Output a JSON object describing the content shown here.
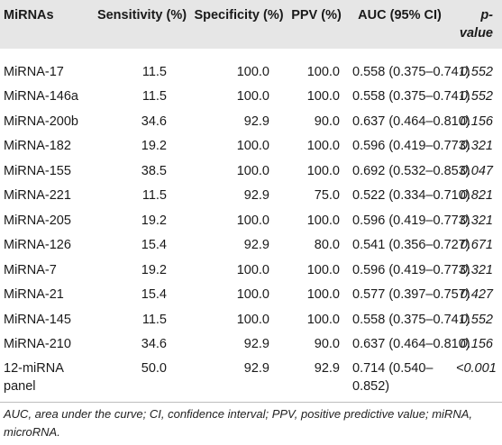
{
  "table": {
    "headers": {
      "name": "MiRNAs",
      "sensitivity": "Sensitivity (%)",
      "specificity": "Specificity (%)",
      "ppv": "PPV (%)",
      "auc": "AUC (95% CI)",
      "p": "p-value"
    },
    "rows": [
      {
        "name": "MiRNA-17",
        "sensitivity": "11.5",
        "specificity": "100.0",
        "ppv": "100.0",
        "auc": "0.558 (0.375–0.741)",
        "p": "0.552"
      },
      {
        "name": "MiRNA-146a",
        "sensitivity": "11.5",
        "specificity": "100.0",
        "ppv": "100.0",
        "auc": "0.558 (0.375–0.741)",
        "p": "0.552"
      },
      {
        "name": "MiRNA-200b",
        "sensitivity": "34.6",
        "specificity": "92.9",
        "ppv": "90.0",
        "auc": "0.637 (0.464–0.810)",
        "p": "0.156"
      },
      {
        "name": "MiRNA-182",
        "sensitivity": "19.2",
        "specificity": "100.0",
        "ppv": "100.0",
        "auc": "0.596 (0.419–0.773)",
        "p": "0.321"
      },
      {
        "name": "MiRNA-155",
        "sensitivity": "38.5",
        "specificity": "100.0",
        "ppv": "100.0",
        "auc": "0.692 (0.532–0.853)",
        "p": "0.047"
      },
      {
        "name": "MiRNA-221",
        "sensitivity": "11.5",
        "specificity": "92.9",
        "ppv": "75.0",
        "auc": "0.522 (0.334–0.710)",
        "p": "0.821"
      },
      {
        "name": "MiRNA-205",
        "sensitivity": "19.2",
        "specificity": "100.0",
        "ppv": "100.0",
        "auc": "0.596 (0.419–0.773)",
        "p": "0.321"
      },
      {
        "name": "MiRNA-126",
        "sensitivity": "15.4",
        "specificity": "92.9",
        "ppv": "80.0",
        "auc": "0.541 (0.356–0.727)",
        "p": "0.671"
      },
      {
        "name": "MiRNA-7",
        "sensitivity": "19.2",
        "specificity": "100.0",
        "ppv": "100.0",
        "auc": "0.596 (0.419–0.773)",
        "p": "0.321"
      },
      {
        "name": "MiRNA-21",
        "sensitivity": "15.4",
        "specificity": "100.0",
        "ppv": "100.0",
        "auc": "0.577 (0.397–0.757)",
        "p": "0.427"
      },
      {
        "name": "MiRNA-145",
        "sensitivity": "11.5",
        "specificity": "100.0",
        "ppv": "100.0",
        "auc": "0.558 (0.375–0.741)",
        "p": "0.552"
      },
      {
        "name": "MiRNA-210",
        "sensitivity": "34.6",
        "specificity": "92.9",
        "ppv": "90.0",
        "auc": "0.637 (0.464–0.810)",
        "p": "0.156"
      },
      {
        "name": "12-miRNA panel",
        "sensitivity": "50.0",
        "specificity": "92.9",
        "ppv": "92.9",
        "auc": "0.714 (0.540–0.852)",
        "p": "<0.001"
      }
    ]
  },
  "footnote": "AUC, area under the curve; CI, confidence interval; PPV, positive predictive value; miRNA, microRNA.",
  "colors": {
    "header_bg": "#e6e6e6",
    "rule": "#bdbdbd",
    "text": "#1a1a1a"
  }
}
